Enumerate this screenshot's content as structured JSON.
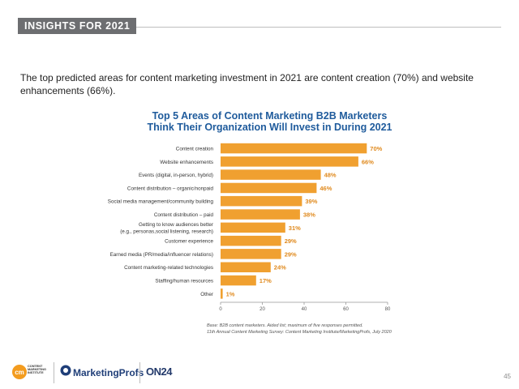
{
  "header": {
    "tag": "INSIGHTS FOR 2021"
  },
  "intro": "The top predicted areas for content marketing investment in 2021 are content creation (70%) and website enhancements (66%).",
  "chart_data": {
    "type": "bar",
    "orientation": "horizontal",
    "title_lines": [
      "Top 5 Areas of Content Marketing B2B Marketers",
      "Think Their Organization Will Invest in During 2021"
    ],
    "categories": [
      [
        "Content creation"
      ],
      [
        "Website enhancements"
      ],
      [
        "Events (digital, in-person, hybrid)"
      ],
      [
        "Content distribution – organic/nonpaid"
      ],
      [
        "Social media management/community building"
      ],
      [
        "Content distribution – paid"
      ],
      [
        "Getting to know audiences better",
        "(e.g., personas,social listening, research)"
      ],
      [
        "Customer experience"
      ],
      [
        "Earned media (PR/media/influencer relations)"
      ],
      [
        "Content marketing-related technologies"
      ],
      [
        "Staffing/human resources"
      ],
      [
        "Other"
      ]
    ],
    "values": [
      70,
      66,
      48,
      46,
      39,
      38,
      31,
      29,
      29,
      24,
      17,
      1
    ],
    "value_suffix": "%",
    "xlim": [
      0,
      80
    ],
    "xticks": [
      "0",
      "20",
      "40",
      "60",
      "80"
    ],
    "grid": false,
    "bar_color": "#f0a030",
    "label_color": "#e08a1e"
  },
  "footnote": [
    "Base: B2B content marketers. Aided list; maximum of five responses permitted.",
    "11th Annual Content Marketing Survey: Content Marketing Institute/MarketingProfs, July 2020"
  ],
  "logos": {
    "cmi_lines": [
      "CONTENT",
      "MARKETING",
      "INSTITUTE"
    ],
    "marketingprofs": "MarketingProfs",
    "on24": "ON24"
  },
  "page_number": "45"
}
